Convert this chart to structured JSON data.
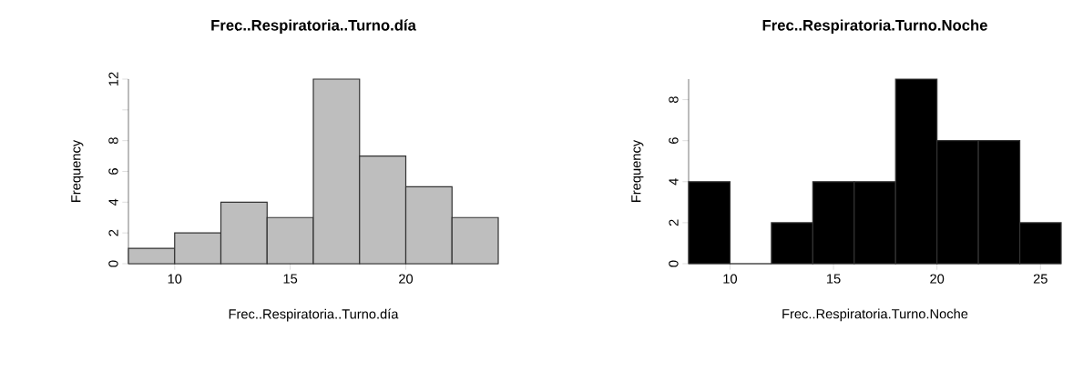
{
  "chart_data": [
    {
      "type": "histogram",
      "title": "Frec..Respiratoria..Turno.día",
      "xlabel": "Frec..Respiratoria..Turno.día",
      "ylabel": "Frequency",
      "bins": [
        8,
        10,
        12,
        14,
        16,
        18,
        20,
        22,
        24
      ],
      "values": [
        1,
        2,
        4,
        3,
        12,
        7,
        5,
        3
      ],
      "color": "#bebebe",
      "xlim": [
        8,
        24
      ],
      "ylim": [
        0,
        12
      ],
      "xticks": [
        10,
        15,
        20
      ],
      "yticks": [
        0,
        2,
        4,
        6,
        8,
        {
          "value": 10,
          "label": null
        },
        12
      ]
    },
    {
      "type": "histogram",
      "title": "Frec..Respiratoria.Turno.Noche",
      "xlabel": "Frec..Respiratoria.Turno.Noche",
      "ylabel": "Frequency",
      "bins": [
        8,
        10,
        12,
        14,
        16,
        18,
        20,
        22,
        24,
        26
      ],
      "values": [
        4,
        0,
        2,
        4,
        4,
        9,
        6,
        6,
        2
      ],
      "color": "#000000",
      "xlim": [
        8,
        26
      ],
      "ylim": [
        0,
        9
      ],
      "xticks": [
        10,
        15,
        20,
        25
      ],
      "yticks": [
        0,
        2,
        4,
        6,
        8
      ]
    }
  ]
}
